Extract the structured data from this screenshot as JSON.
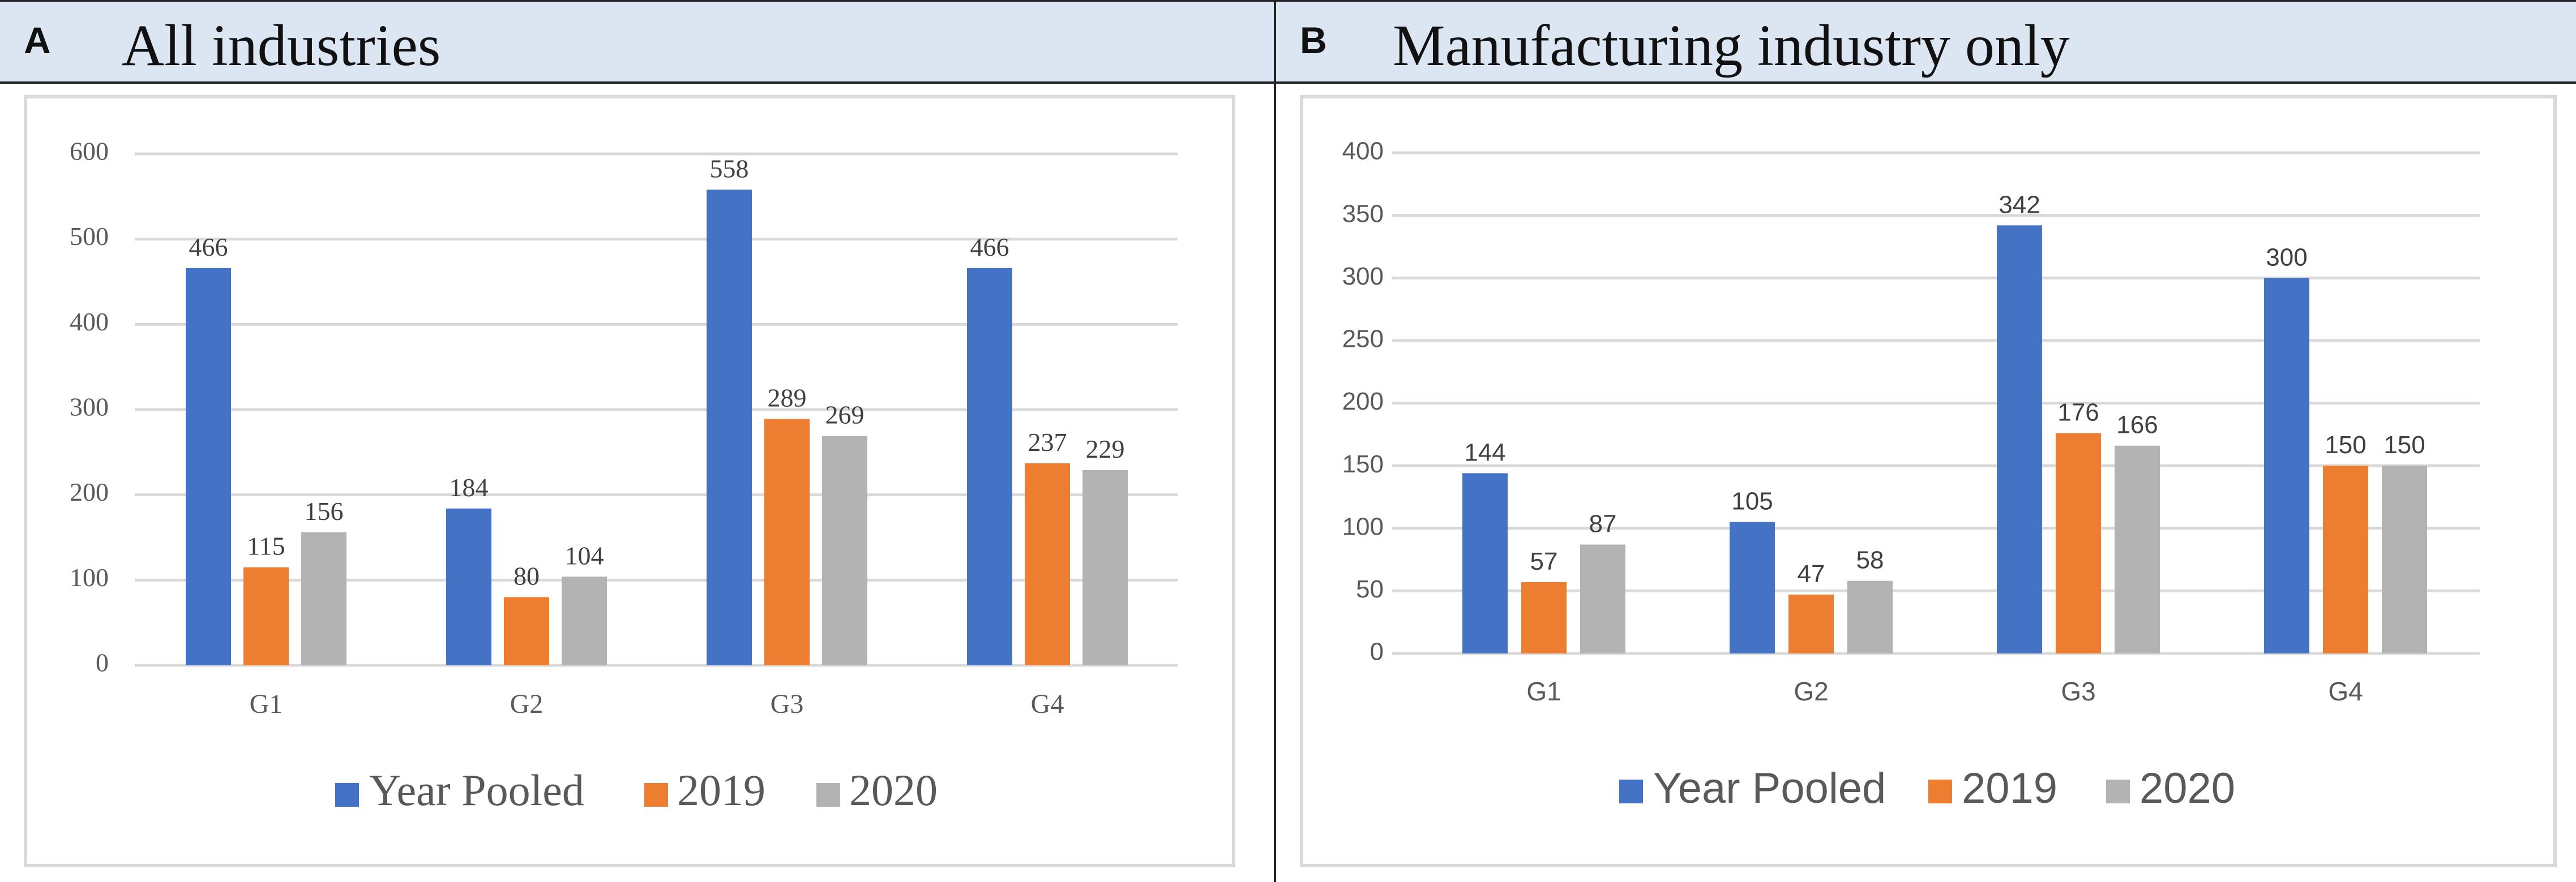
{
  "panels": [
    {
      "letter": "A",
      "title": "All industries"
    },
    {
      "letter": "B",
      "title": "Manufacturing industry only"
    }
  ],
  "colors": {
    "year_pooled": "#4472c4",
    "y2019": "#ed7d31",
    "y2020": "#b3b3b3",
    "grid": "#d9d9d9"
  },
  "chart_data": [
    {
      "type": "bar",
      "title": "All industries",
      "categories": [
        "G1",
        "G2",
        "G3",
        "G4"
      ],
      "series": [
        {
          "name": "Year Pooled",
          "values": [
            466,
            184,
            558,
            466
          ]
        },
        {
          "name": "2019",
          "values": [
            115,
            80,
            289,
            237
          ]
        },
        {
          "name": "2020",
          "values": [
            156,
            104,
            269,
            229
          ]
        }
      ],
      "yticks": [
        0,
        100,
        200,
        300,
        400,
        500,
        600
      ],
      "ylim": [
        0,
        600
      ],
      "xlabel": "",
      "ylabel": "",
      "grid": true,
      "legend": "bottom"
    },
    {
      "type": "bar",
      "title": "Manufacturing industry only",
      "categories": [
        "G1",
        "G2",
        "G3",
        "G4"
      ],
      "series": [
        {
          "name": "Year Pooled",
          "values": [
            144,
            105,
            342,
            300
          ]
        },
        {
          "name": "2019",
          "values": [
            57,
            47,
            176,
            150
          ]
        },
        {
          "name": "2020",
          "values": [
            87,
            58,
            166,
            150
          ]
        }
      ],
      "yticks": [
        0,
        50,
        100,
        150,
        200,
        250,
        300,
        350,
        400
      ],
      "ylim": [
        0,
        400
      ],
      "xlabel": "",
      "ylabel": "",
      "grid": true,
      "legend": "bottom"
    }
  ]
}
